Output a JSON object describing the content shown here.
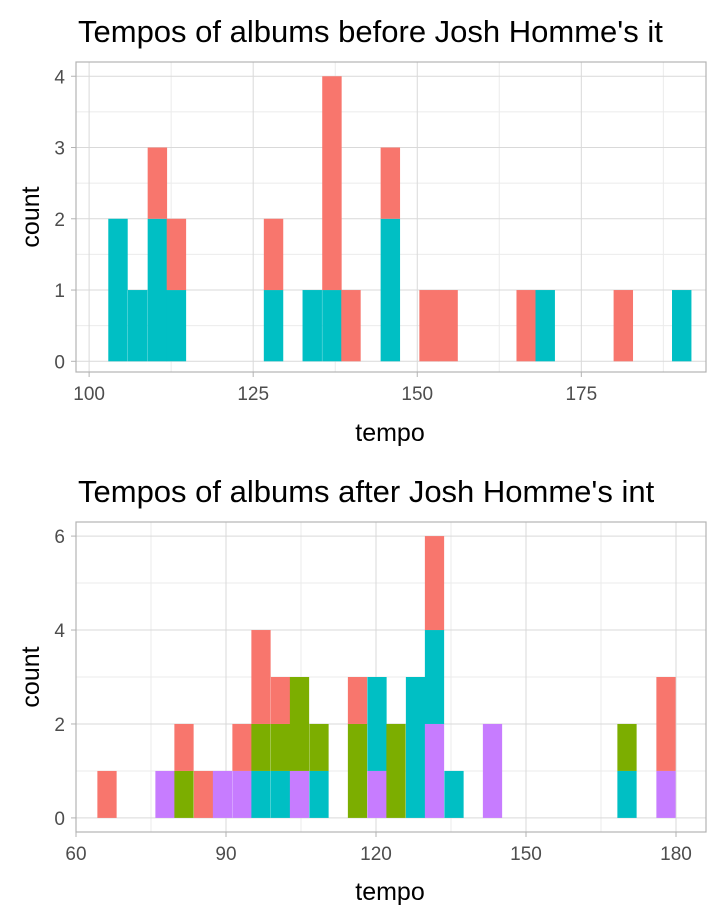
{
  "colors": {
    "series_1": "#F8766D",
    "series_2": "#7CAE00",
    "series_3": "#00BFC4",
    "series_4": "#C77CFF",
    "grid_major": "#d9d9d9",
    "grid_minor": "#ebebeb",
    "panel_border": "#b3b3b3",
    "tick_text": "#4d4d4d",
    "title_text": "#000000"
  },
  "chart_data": [
    {
      "type": "bar",
      "stacked": true,
      "title": "Tempos of albums before Josh Homme's it",
      "xlabel": "tempo",
      "ylabel": "count",
      "xlim": [
        98,
        194
      ],
      "ylim": [
        -0.15,
        4.2
      ],
      "xticks": [
        100,
        125,
        150,
        175
      ],
      "yticks": [
        0,
        1,
        2,
        3,
        4
      ],
      "grid": true,
      "bin_width": 2.96,
      "bins": [
        {
          "x": 104.4,
          "counts": {
            "series_3": 2
          }
        },
        {
          "x": 107.4,
          "counts": {
            "series_3": 1
          }
        },
        {
          "x": 110.4,
          "counts": {
            "series_3": 2,
            "series_1": 1
          }
        },
        {
          "x": 113.3,
          "counts": {
            "series_3": 1,
            "series_1": 1
          }
        },
        {
          "x": 128.1,
          "counts": {
            "series_3": 1,
            "series_1": 1
          }
        },
        {
          "x": 134.0,
          "counts": {
            "series_3": 1
          }
        },
        {
          "x": 137.0,
          "counts": {
            "series_3": 1,
            "series_1": 3
          }
        },
        {
          "x": 139.9,
          "counts": {
            "series_1": 1
          }
        },
        {
          "x": 145.9,
          "counts": {
            "series_3": 2,
            "series_1": 1
          }
        },
        {
          "x": 151.8,
          "counts": {
            "series_1": 1
          }
        },
        {
          "x": 154.7,
          "counts": {
            "series_1": 1
          }
        },
        {
          "x": 166.6,
          "counts": {
            "series_1": 1
          }
        },
        {
          "x": 169.5,
          "counts": {
            "series_3": 1
          }
        },
        {
          "x": 181.4,
          "counts": {
            "series_1": 1
          }
        },
        {
          "x": 190.3,
          "counts": {
            "series_3": 1
          }
        }
      ]
    },
    {
      "type": "bar",
      "stacked": true,
      "title": "Tempos of albums after Josh Homme's int",
      "xlabel": "tempo",
      "ylabel": "count",
      "xlim": [
        60,
        186
      ],
      "ylim": [
        -0.3,
        6.3
      ],
      "xticks": [
        60,
        90,
        120,
        150,
        180
      ],
      "yticks": [
        0,
        2,
        4,
        6
      ],
      "grid": true,
      "bin_width": 3.85,
      "bins": [
        {
          "x": 66.2,
          "counts": {
            "series_1": 1
          }
        },
        {
          "x": 77.8,
          "counts": {
            "series_4": 1
          }
        },
        {
          "x": 81.6,
          "counts": {
            "series_2": 1,
            "series_1": 1
          }
        },
        {
          "x": 85.5,
          "counts": {
            "series_1": 1
          }
        },
        {
          "x": 89.3,
          "counts": {
            "series_4": 1
          }
        },
        {
          "x": 93.2,
          "counts": {
            "series_4": 1,
            "series_1": 1
          }
        },
        {
          "x": 97.0,
          "counts": {
            "series_3": 1,
            "series_2": 1,
            "series_1": 2
          }
        },
        {
          "x": 100.9,
          "counts": {
            "series_3": 1,
            "series_2": 1,
            "series_1": 1
          }
        },
        {
          "x": 104.7,
          "counts": {
            "series_4": 1,
            "series_2": 2
          }
        },
        {
          "x": 108.6,
          "counts": {
            "series_3": 1,
            "series_2": 1
          }
        },
        {
          "x": 116.3,
          "counts": {
            "series_2": 2,
            "series_1": 1
          }
        },
        {
          "x": 120.2,
          "counts": {
            "series_4": 1,
            "series_3": 2
          }
        },
        {
          "x": 124.0,
          "counts": {
            "series_2": 2
          }
        },
        {
          "x": 127.9,
          "counts": {
            "series_3": 3
          }
        },
        {
          "x": 131.7,
          "counts": {
            "series_4": 2,
            "series_3": 2,
            "series_1": 2
          }
        },
        {
          "x": 135.6,
          "counts": {
            "series_3": 1
          }
        },
        {
          "x": 143.3,
          "counts": {
            "series_4": 2
          }
        },
        {
          "x": 170.2,
          "counts": {
            "series_3": 1,
            "series_2": 1
          }
        },
        {
          "x": 178.0,
          "counts": {
            "series_4": 1,
            "series_1": 2
          }
        }
      ]
    }
  ]
}
